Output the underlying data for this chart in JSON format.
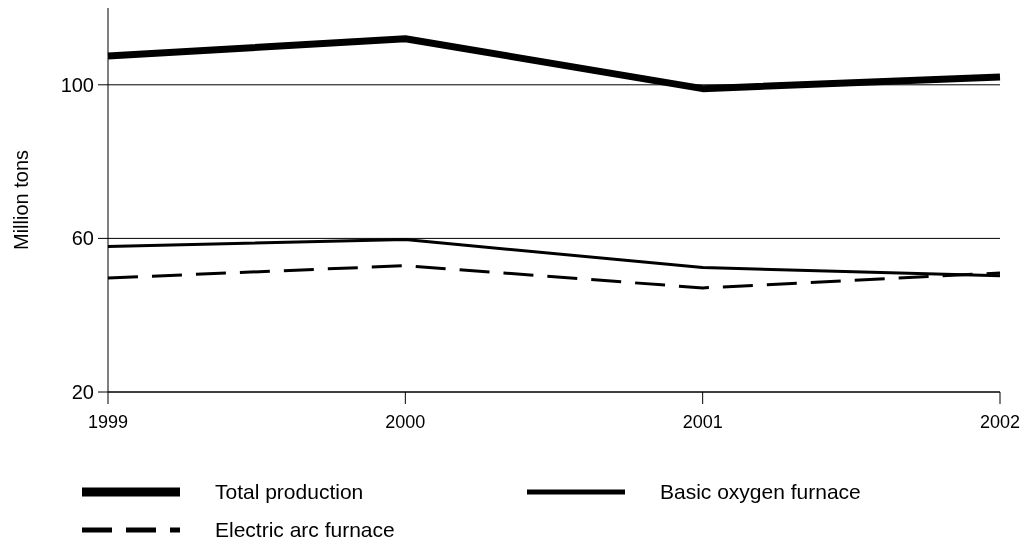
{
  "chart_data": {
    "type": "line",
    "ylabel": "Million tons",
    "x": [
      1999,
      2000,
      2001,
      2002
    ],
    "xlim": [
      1999,
      2002
    ],
    "xticks": [
      1999,
      2000,
      2001,
      2002
    ],
    "ylim": [
      20,
      120
    ],
    "yticks": [
      20,
      60,
      100
    ],
    "grid": "y",
    "legend": "bottom",
    "series": [
      {
        "name": "Total production",
        "color": "#000000",
        "values": [
          107.5,
          112,
          99,
          102
        ],
        "line_style": "solid"
      },
      {
        "name": "Basic oxygen furnace",
        "color": "#000000",
        "values": [
          57.9,
          59.7,
          52.4,
          50.3
        ],
        "line_style": "solid"
      },
      {
        "name": "Electric arc furnace",
        "color": "#000000",
        "values": [
          49.7,
          52.9,
          47.1,
          51
        ],
        "line_style": "dashed"
      }
    ]
  }
}
